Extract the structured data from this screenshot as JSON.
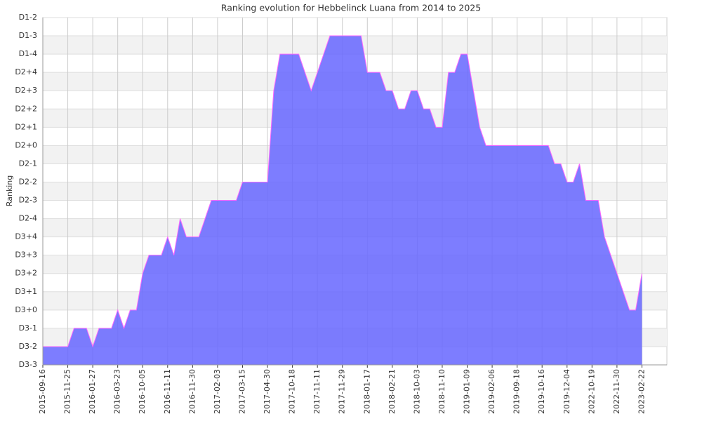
{
  "chart_data": {
    "type": "area",
    "title": "Ranking evolution for Hebbelinck Luana from 2014 to 2025",
    "y_label": "Ranking",
    "categories": [
      "2015-09-16",
      null,
      null,
      null,
      "2015-11-25",
      null,
      null,
      null,
      "2016-01-27",
      null,
      null,
      null,
      "2016-03-23",
      null,
      null,
      null,
      "2016-10-05",
      null,
      null,
      null,
      "2016-11-11",
      null,
      null,
      null,
      "2016-11-30",
      null,
      null,
      null,
      "2017-02-03",
      null,
      null,
      null,
      "2017-03-15",
      null,
      null,
      null,
      "2017-04-30",
      null,
      null,
      null,
      "2017-10-18",
      null,
      null,
      null,
      "2017-11-11",
      null,
      null,
      null,
      "2017-11-29",
      null,
      null,
      null,
      "2018-01-17",
      null,
      null,
      null,
      "2018-02-21",
      null,
      null,
      null,
      "2018-10-03",
      null,
      null,
      null,
      "2018-11-10",
      null,
      null,
      null,
      "2019-01-09",
      null,
      null,
      null,
      "2019-02-06",
      null,
      null,
      null,
      "2019-09-18",
      null,
      null,
      null,
      "2019-10-16",
      null,
      null,
      null,
      "2019-12-04",
      null,
      null,
      null,
      "2022-10-19",
      null,
      null,
      null,
      "2022-11-30",
      null,
      null,
      null,
      "2023-02-22"
    ],
    "values": [
      1,
      1,
      1,
      1,
      1,
      2,
      2,
      2,
      1,
      2,
      2,
      2,
      3,
      2,
      3,
      3,
      5,
      6,
      6,
      6,
      7,
      6,
      8,
      7,
      7,
      7,
      8,
      9,
      9,
      9,
      9,
      9,
      10,
      10,
      10,
      10,
      10,
      15,
      17,
      17,
      17,
      17,
      16,
      15,
      16,
      17,
      18,
      18,
      18,
      18,
      18,
      18,
      16,
      16,
      16,
      15,
      15,
      14,
      14,
      15,
      15,
      14,
      14,
      13,
      13,
      16,
      16,
      17,
      17,
      15,
      13,
      12,
      12,
      12,
      12,
      12,
      12,
      12,
      12,
      12,
      12,
      12,
      11,
      11,
      10,
      10,
      11,
      9,
      9,
      9,
      7,
      6,
      5,
      4,
      3,
      3,
      5
    ],
    "color": "#6666ff",
    "line_color": "#ff66ff",
    "ylim": [
      0,
      19
    ],
    "yticks": [
      {
        "value": 0,
        "label": "D3-3"
      },
      {
        "value": 1,
        "label": "D3-2"
      },
      {
        "value": 2,
        "label": "D3-1"
      },
      {
        "value": 3,
        "label": "D3+0"
      },
      {
        "value": 4,
        "label": "D3+1"
      },
      {
        "value": 5,
        "label": "D3+2"
      },
      {
        "value": 6,
        "label": "D3+3"
      },
      {
        "value": 7,
        "label": "D3+4"
      },
      {
        "value": 8,
        "label": "D2-4"
      },
      {
        "value": 9,
        "label": "D2-3"
      },
      {
        "value": 10,
        "label": "D2-2"
      },
      {
        "value": 11,
        "label": "D2-1"
      },
      {
        "value": 12,
        "label": "D2+0"
      },
      {
        "value": 13,
        "label": "D2+1"
      },
      {
        "value": 14,
        "label": "D2+2"
      },
      {
        "value": 15,
        "label": "D2+3"
      },
      {
        "value": 16,
        "label": "D2+4"
      },
      {
        "value": 17,
        "label": "D1-4"
      },
      {
        "value": 18,
        "label": "D1-3"
      },
      {
        "value": 19,
        "label": "D1-2"
      }
    ],
    "grid": true
  }
}
